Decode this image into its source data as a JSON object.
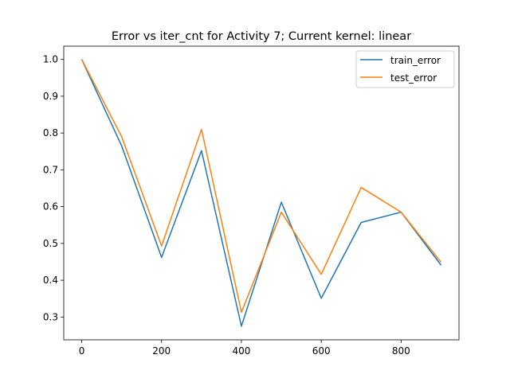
{
  "chart_data": {
    "type": "line",
    "title": "Error vs iter_cnt for Activity 7; Current kernel: linear",
    "xlabel": "",
    "ylabel": "",
    "x": [
      0,
      100,
      200,
      300,
      400,
      500,
      600,
      700,
      800,
      900
    ],
    "xlim": [
      -45,
      945
    ],
    "ylim": [
      0.238,
      1.036
    ],
    "xticks": [
      0,
      200,
      400,
      600,
      800
    ],
    "xtick_labels": [
      "0",
      "200",
      "400",
      "600",
      "800"
    ],
    "yticks": [
      0.3,
      0.4,
      0.5,
      0.6,
      0.7,
      0.8,
      0.9,
      1.0
    ],
    "ytick_labels": [
      "0.3",
      "0.4",
      "0.5",
      "0.6",
      "0.7",
      "0.8",
      "0.9",
      "1.0"
    ],
    "grid": false,
    "legend_position": "top-right",
    "series": [
      {
        "name": "train_error",
        "color": "#1f77b4",
        "values": [
          1.0,
          0.765,
          0.462,
          0.752,
          0.275,
          0.612,
          0.351,
          0.557,
          0.585,
          0.441
        ]
      },
      {
        "name": "test_error",
        "color": "#ff7f0e",
        "values": [
          1.0,
          0.79,
          0.493,
          0.81,
          0.313,
          0.585,
          0.416,
          0.652,
          0.585,
          0.449
        ]
      }
    ]
  }
}
